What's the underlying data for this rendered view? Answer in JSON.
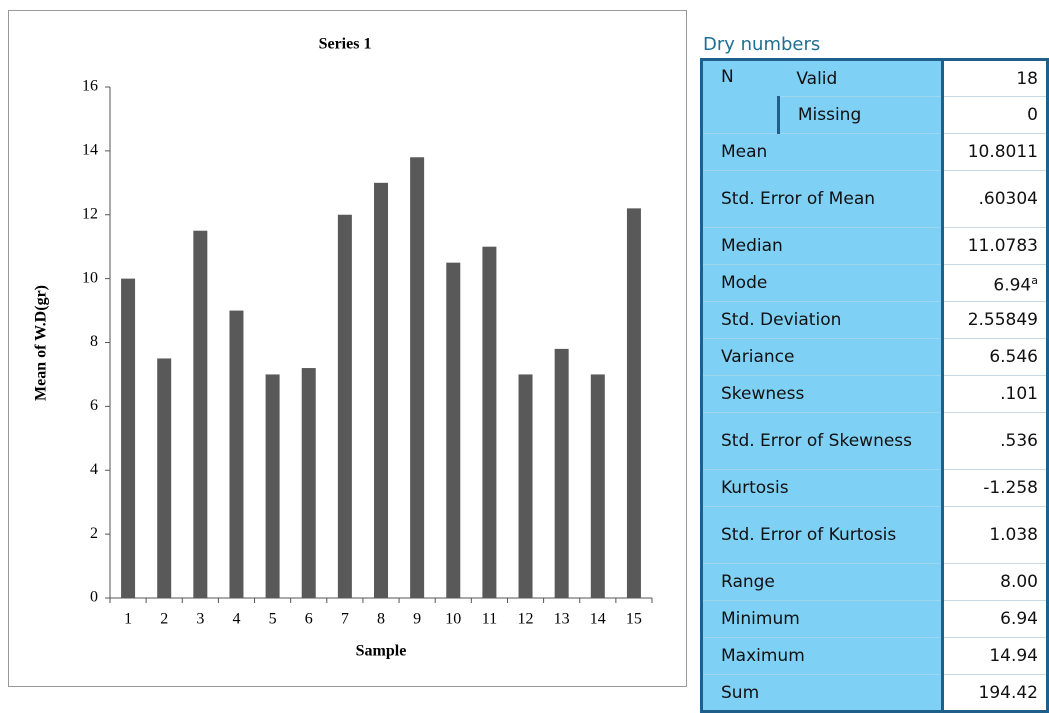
{
  "chart_data": {
    "type": "bar",
    "title": "Series 1",
    "x_label": "Sample",
    "y_label": "Mean of W.D(gr)",
    "categories": [
      "1",
      "2",
      "3",
      "4",
      "5",
      "6",
      "7",
      "8",
      "9",
      "10",
      "11",
      "12",
      "13",
      "14",
      "15"
    ],
    "values": [
      10,
      7.5,
      11.5,
      9,
      7,
      7.2,
      12,
      13,
      13.8,
      10.5,
      11,
      7,
      7.8,
      7,
      12.2
    ],
    "color": "#595959",
    "ylim": [
      0,
      16
    ],
    "yticks": [
      0,
      2,
      4,
      6,
      8,
      10,
      12,
      14,
      16
    ],
    "grid": false
  },
  "table": {
    "title": "Dry numbers",
    "rows": [
      {
        "label": "N",
        "sub": "Valid",
        "value": "18"
      },
      {
        "sub": "Missing",
        "value": "0"
      },
      {
        "label": "Mean",
        "value": "10.8011"
      },
      {
        "label": "Std. Error of Mean",
        "value": ".60304"
      },
      {
        "label": "Median",
        "value": "11.0783"
      },
      {
        "label": "Mode",
        "value": "6.94",
        "note": "a"
      },
      {
        "label": "Std. Deviation",
        "value": "2.55849"
      },
      {
        "label": "Variance",
        "value": "6.546"
      },
      {
        "label": "Skewness",
        "value": ".101"
      },
      {
        "label": "Std. Error of Skewness",
        "value": ".536"
      },
      {
        "label": "Kurtosis",
        "value": "-1.258"
      },
      {
        "label": "Std. Error of Kurtosis",
        "value": "1.038"
      },
      {
        "label": "Range",
        "value": "8.00"
      },
      {
        "label": "Minimum",
        "value": "6.94"
      },
      {
        "label": "Maximum",
        "value": "14.94"
      },
      {
        "label": "Sum",
        "value": "194.42"
      }
    ]
  }
}
